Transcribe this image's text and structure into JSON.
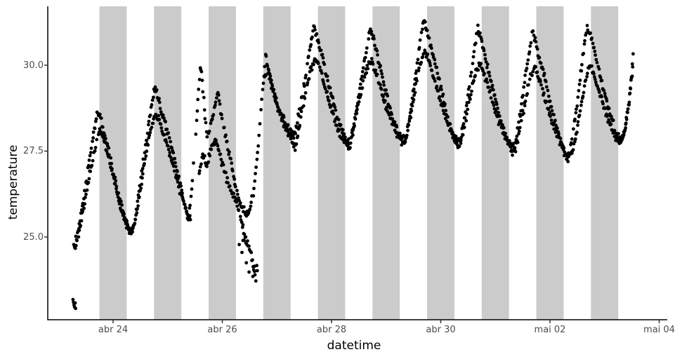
{
  "chart_data": {
    "type": "scatter",
    "title": "",
    "xlabel": "datetime",
    "ylabel": "temperature",
    "x_unit_days_origin": "abr 23 00:00 (t measured in days; tick 'abr 24' is t=1)",
    "xlim": [
      -0.2,
      11.15
    ],
    "ylim": [
      22.55,
      31.75
    ],
    "grid": false,
    "legend": false,
    "x_ticks": [
      {
        "t": 1,
        "label": "abr 24"
      },
      {
        "t": 3,
        "label": "abr 26"
      },
      {
        "t": 5,
        "label": "abr 28"
      },
      {
        "t": 7,
        "label": "abr 30"
      },
      {
        "t": 9,
        "label": "mai 02"
      },
      {
        "t": 11,
        "label": "mai 04"
      }
    ],
    "y_ticks": [
      {
        "v": 25.0,
        "label": "25.0"
      },
      {
        "v": 27.5,
        "label": "27.5"
      },
      {
        "v": 30.0,
        "label": "30.0"
      }
    ],
    "shaded_night_bands_t": [
      [
        0.75,
        1.25
      ],
      [
        1.75,
        2.25
      ],
      [
        2.75,
        3.25
      ],
      [
        3.75,
        4.25
      ],
      [
        4.75,
        5.25
      ],
      [
        5.75,
        6.25
      ],
      [
        6.75,
        7.25
      ],
      [
        7.75,
        8.25
      ],
      [
        8.75,
        9.25
      ],
      [
        9.75,
        10.25
      ]
    ],
    "colors": {
      "points": "#000000",
      "bands": "#cbcbcb",
      "axis_line": "#000000",
      "tick_mark": "#333333",
      "tick_text": "#4d4d4d",
      "axis_title_text": "#000000",
      "background": "#ffffff"
    },
    "sampling_interval_days": 0.013,
    "series": [
      {
        "name": "trace-upper",
        "gaps": [],
        "keypoints": [
          [
            0.28,
            24.7
          ],
          [
            0.34,
            25.05
          ],
          [
            0.4,
            25.55
          ],
          [
            0.46,
            26.15
          ],
          [
            0.52,
            26.75
          ],
          [
            0.58,
            27.35
          ],
          [
            0.64,
            27.95
          ],
          [
            0.69,
            28.4
          ],
          [
            0.73,
            28.65
          ],
          [
            0.79,
            28.35
          ],
          [
            0.88,
            27.75
          ],
          [
            1.0,
            26.95
          ],
          [
            1.12,
            26.15
          ],
          [
            1.24,
            25.45
          ],
          [
            1.33,
            25.05
          ],
          [
            1.4,
            25.45
          ],
          [
            1.48,
            26.35
          ],
          [
            1.57,
            27.35
          ],
          [
            1.66,
            28.35
          ],
          [
            1.73,
            29.05
          ],
          [
            1.77,
            29.35
          ],
          [
            1.83,
            29.0
          ],
          [
            1.92,
            28.5
          ],
          [
            2.02,
            27.9
          ],
          [
            2.12,
            27.25
          ],
          [
            2.22,
            26.6
          ],
          [
            2.31,
            25.95
          ],
          [
            2.38,
            25.5
          ],
          [
            2.44,
            26.4
          ],
          [
            2.51,
            27.9
          ],
          [
            2.56,
            29.1
          ],
          [
            2.6,
            30.05
          ],
          [
            2.64,
            29.4
          ],
          [
            2.68,
            28.6
          ],
          [
            2.72,
            27.9
          ],
          [
            2.79,
            28.3
          ],
          [
            2.86,
            28.8
          ],
          [
            2.92,
            29.2
          ],
          [
            2.99,
            28.5
          ],
          [
            3.07,
            27.8
          ],
          [
            3.15,
            27.2
          ],
          [
            3.24,
            26.55
          ],
          [
            3.33,
            26.0
          ],
          [
            3.42,
            25.7
          ],
          [
            3.5,
            25.75
          ],
          [
            3.58,
            26.4
          ],
          [
            3.66,
            27.7
          ],
          [
            3.73,
            29.1
          ],
          [
            3.79,
            30.25
          ],
          [
            3.85,
            29.85
          ],
          [
            3.94,
            29.25
          ],
          [
            4.04,
            28.7
          ],
          [
            4.14,
            28.35
          ],
          [
            4.23,
            28.1
          ],
          [
            4.31,
            27.95
          ],
          [
            4.4,
            28.55
          ],
          [
            4.5,
            29.45
          ],
          [
            4.6,
            30.45
          ],
          [
            4.68,
            31.15
          ],
          [
            4.75,
            30.75
          ],
          [
            4.86,
            30.05
          ],
          [
            4.98,
            29.25
          ],
          [
            5.1,
            28.55
          ],
          [
            5.22,
            28.0
          ],
          [
            5.32,
            27.55
          ],
          [
            5.4,
            28.15
          ],
          [
            5.51,
            29.2
          ],
          [
            5.62,
            30.3
          ],
          [
            5.71,
            31.05
          ],
          [
            5.78,
            30.7
          ],
          [
            5.89,
            29.95
          ],
          [
            6.01,
            29.1
          ],
          [
            6.13,
            28.4
          ],
          [
            6.24,
            27.95
          ],
          [
            6.33,
            27.65
          ],
          [
            6.42,
            28.4
          ],
          [
            6.53,
            29.55
          ],
          [
            6.63,
            30.75
          ],
          [
            6.69,
            31.3
          ],
          [
            6.76,
            30.95
          ],
          [
            6.87,
            30.2
          ],
          [
            6.99,
            29.4
          ],
          [
            7.11,
            28.6
          ],
          [
            7.23,
            27.95
          ],
          [
            7.33,
            27.55
          ],
          [
            7.42,
            28.3
          ],
          [
            7.52,
            29.4
          ],
          [
            7.62,
            30.5
          ],
          [
            7.68,
            31.1
          ],
          [
            7.75,
            30.7
          ],
          [
            7.86,
            29.95
          ],
          [
            7.98,
            29.15
          ],
          [
            8.1,
            28.4
          ],
          [
            8.22,
            27.85
          ],
          [
            8.32,
            27.4
          ],
          [
            8.42,
            28.2
          ],
          [
            8.52,
            29.3
          ],
          [
            8.62,
            30.4
          ],
          [
            8.68,
            30.95
          ],
          [
            8.75,
            30.6
          ],
          [
            8.86,
            29.9
          ],
          [
            8.98,
            29.1
          ],
          [
            9.1,
            28.3
          ],
          [
            9.22,
            27.7
          ],
          [
            9.33,
            27.15
          ],
          [
            9.42,
            28.0
          ],
          [
            9.52,
            29.2
          ],
          [
            9.62,
            30.5
          ],
          [
            9.68,
            31.15
          ],
          [
            9.75,
            30.85
          ],
          [
            9.86,
            30.1
          ],
          [
            9.98,
            29.3
          ],
          [
            10.1,
            28.6
          ],
          [
            10.2,
            28.1
          ],
          [
            10.29,
            27.75
          ],
          [
            10.36,
            27.95
          ],
          [
            10.43,
            28.7
          ],
          [
            10.49,
            29.6
          ],
          [
            10.53,
            30.35
          ]
        ]
      },
      {
        "name": "trace-lower",
        "gaps": [
          [
            2.43,
            2.57
          ],
          [
            3.63,
            3.76
          ]
        ],
        "keypoints": [
          [
            0.3,
            24.6
          ],
          [
            0.38,
            25.2
          ],
          [
            0.46,
            25.85
          ],
          [
            0.54,
            26.55
          ],
          [
            0.62,
            27.2
          ],
          [
            0.7,
            27.8
          ],
          [
            0.76,
            28.15
          ],
          [
            0.82,
            27.9
          ],
          [
            0.92,
            27.3
          ],
          [
            1.04,
            26.5
          ],
          [
            1.16,
            25.75
          ],
          [
            1.28,
            25.2
          ],
          [
            1.36,
            25.15
          ],
          [
            1.44,
            25.8
          ],
          [
            1.53,
            26.65
          ],
          [
            1.62,
            27.55
          ],
          [
            1.71,
            28.3
          ],
          [
            1.79,
            28.6
          ],
          [
            1.86,
            28.3
          ],
          [
            1.96,
            27.8
          ],
          [
            2.07,
            27.2
          ],
          [
            2.18,
            26.6
          ],
          [
            2.28,
            26.05
          ],
          [
            2.37,
            25.6
          ],
          [
            2.42,
            25.5
          ],
          [
            2.58,
            26.9
          ],
          [
            2.64,
            27.4
          ],
          [
            2.72,
            27.1
          ],
          [
            2.8,
            27.55
          ],
          [
            2.88,
            27.85
          ],
          [
            2.95,
            27.45
          ],
          [
            3.03,
            26.95
          ],
          [
            3.11,
            26.55
          ],
          [
            3.19,
            26.25
          ],
          [
            3.27,
            25.95
          ],
          [
            3.34,
            25.55
          ],
          [
            3.41,
            25.05
          ],
          [
            3.47,
            24.7
          ],
          [
            3.53,
            24.4
          ],
          [
            3.58,
            24.05
          ],
          [
            3.62,
            23.8
          ],
          [
            3.77,
            29.55
          ],
          [
            3.82,
            29.95
          ],
          [
            3.88,
            29.55
          ],
          [
            3.97,
            29.0
          ],
          [
            4.07,
            28.5
          ],
          [
            4.17,
            28.15
          ],
          [
            4.26,
            27.85
          ],
          [
            4.33,
            27.6
          ],
          [
            4.42,
            28.3
          ],
          [
            4.52,
            29.2
          ],
          [
            4.62,
            29.9
          ],
          [
            4.7,
            30.2
          ],
          [
            4.78,
            29.9
          ],
          [
            4.9,
            29.25
          ],
          [
            5.03,
            28.55
          ],
          [
            5.16,
            27.95
          ],
          [
            5.28,
            27.7
          ],
          [
            5.37,
            27.9
          ],
          [
            5.47,
            28.7
          ],
          [
            5.58,
            29.55
          ],
          [
            5.67,
            30.0
          ],
          [
            5.73,
            30.1
          ],
          [
            5.81,
            29.8
          ],
          [
            5.93,
            29.15
          ],
          [
            6.06,
            28.5
          ],
          [
            6.18,
            28.05
          ],
          [
            6.29,
            27.9
          ],
          [
            6.38,
            27.95
          ],
          [
            6.47,
            28.75
          ],
          [
            6.58,
            29.75
          ],
          [
            6.67,
            30.3
          ],
          [
            6.72,
            30.4
          ],
          [
            6.8,
            30.05
          ],
          [
            6.92,
            29.4
          ],
          [
            7.05,
            28.7
          ],
          [
            7.18,
            28.1
          ],
          [
            7.29,
            27.8
          ],
          [
            7.38,
            27.8
          ],
          [
            7.47,
            28.5
          ],
          [
            7.58,
            29.45
          ],
          [
            7.67,
            29.9
          ],
          [
            7.72,
            30.0
          ],
          [
            7.8,
            29.7
          ],
          [
            7.92,
            29.1
          ],
          [
            8.05,
            28.4
          ],
          [
            8.18,
            27.9
          ],
          [
            8.29,
            27.65
          ],
          [
            8.38,
            27.6
          ],
          [
            8.47,
            28.3
          ],
          [
            8.58,
            29.25
          ],
          [
            8.67,
            29.8
          ],
          [
            8.72,
            29.9
          ],
          [
            8.8,
            29.6
          ],
          [
            8.92,
            29.0
          ],
          [
            9.05,
            28.3
          ],
          [
            9.18,
            27.75
          ],
          [
            9.3,
            27.4
          ],
          [
            9.4,
            27.4
          ],
          [
            9.49,
            28.1
          ],
          [
            9.59,
            29.0
          ],
          [
            9.68,
            29.8
          ],
          [
            9.73,
            30.0
          ],
          [
            9.81,
            29.7
          ],
          [
            9.93,
            29.05
          ],
          [
            10.05,
            28.45
          ],
          [
            10.16,
            28.0
          ],
          [
            10.26,
            27.75
          ],
          [
            10.33,
            27.85
          ],
          [
            10.4,
            28.4
          ],
          [
            10.47,
            29.2
          ],
          [
            10.52,
            30.05
          ]
        ]
      }
    ],
    "outlier_points": [
      [
        0.265,
        23.18
      ],
      [
        0.275,
        23.1
      ],
      [
        0.285,
        23.02
      ],
      [
        0.295,
        22.96
      ],
      [
        0.305,
        23.08
      ],
      [
        0.315,
        22.92
      ],
      [
        3.31,
        24.78
      ],
      [
        3.36,
        24.55
      ],
      [
        3.4,
        24.9
      ],
      [
        3.44,
        24.25
      ],
      [
        3.49,
        23.98
      ],
      [
        3.53,
        24.55
      ],
      [
        3.56,
        23.85
      ],
      [
        3.59,
        24.15
      ],
      [
        3.615,
        23.72
      ],
      [
        3.64,
        24.02
      ],
      [
        3.38,
        24.9
      ],
      [
        3.43,
        25.0
      ]
    ]
  }
}
